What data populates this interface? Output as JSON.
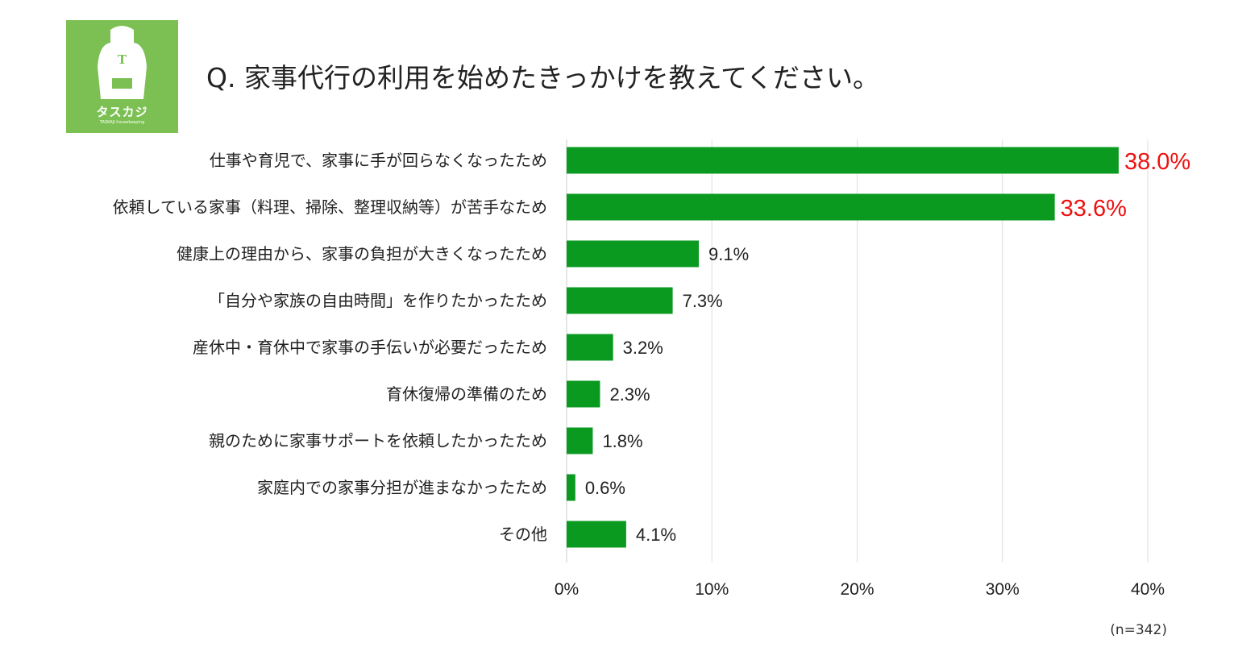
{
  "header": {
    "title": "Q. 家事代行の利用を始めたきっかけを教えてください。"
  },
  "logo": {
    "letter": "T",
    "name": "タスカジ",
    "subtitle": "TASKAJI housekeeping",
    "bg_color": "#7cc053"
  },
  "chart_data": {
    "type": "bar",
    "orientation": "horizontal",
    "categories": [
      "仕事や育児で、家事に手が回らなくなったため",
      "依頼している家事（料理、掃除、整理収納等）が苦手なため",
      "健康上の理由から、家事の負担が大きくなったため",
      "「自分や家族の自由時間」を作りたかったため",
      "産休中・育休中で家事の手伝いが必要だったため",
      "育休復帰の準備のため",
      "親のために家事サポートを依頼したかったため",
      "家庭内での家事分担が進まなかったため",
      "その他"
    ],
    "values": [
      38.0,
      33.6,
      9.1,
      7.3,
      3.2,
      2.3,
      1.8,
      0.6,
      4.1
    ],
    "value_labels": [
      "38.0%",
      "33.6%",
      "9.1%",
      "7.3%",
      "3.2%",
      "2.3%",
      "1.8%",
      "0.6%",
      "4.1%"
    ],
    "highlighted": [
      true,
      true,
      false,
      false,
      false,
      false,
      false,
      false,
      false
    ],
    "x_ticks": [
      "0%",
      "10%",
      "20%",
      "30%",
      "40%"
    ],
    "xlim": [
      0,
      40
    ],
    "grid": true,
    "bar_color": "#0a9a20",
    "highlight_color": "#ee1111",
    "note": "(n=342)"
  }
}
